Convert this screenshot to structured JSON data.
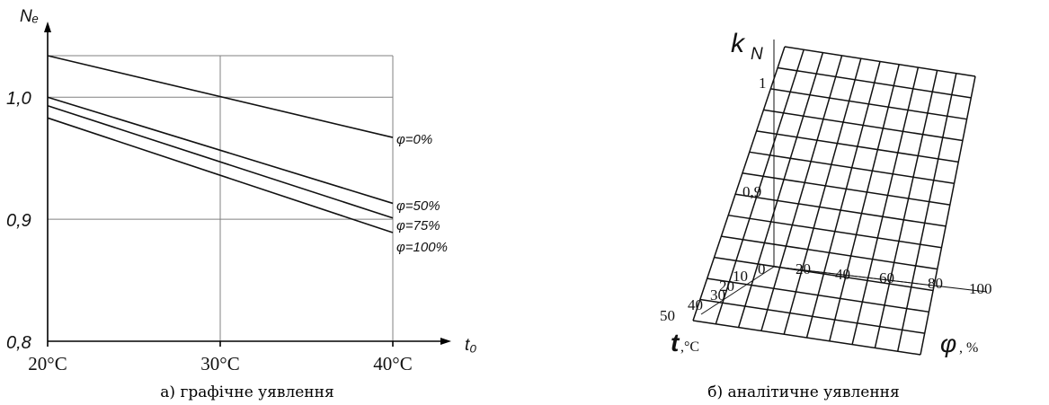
{
  "chart_data": [
    {
      "type": "line",
      "xlabel": "t₀",
      "ylabel": "Nₑ",
      "x": [
        20,
        40
      ],
      "x_tick_labels": [
        "20°C",
        "30°C",
        "40°C"
      ],
      "x_ticks": [
        20,
        30,
        40
      ],
      "y_tick_labels": [
        "0,8",
        "0,9",
        "1,0"
      ],
      "y_ticks": [
        0.8,
        0.9,
        1.0
      ],
      "xlim": [
        20,
        40
      ],
      "ylim": [
        0.8,
        1.034
      ],
      "grid": true,
      "series": [
        {
          "name": "φ=0%",
          "values": [
            1.034,
            0.967
          ]
        },
        {
          "name": "φ=50%",
          "values": [
            1.0,
            0.913
          ]
        },
        {
          "name": "φ=75%",
          "values": [
            0.993,
            0.901
          ]
        },
        {
          "name": "φ=100%",
          "values": [
            0.983,
            0.889
          ]
        }
      ],
      "caption": "а) графічне уявлення"
    },
    {
      "type": "surface",
      "zlabel": "k",
      "zlabel_sub": "N",
      "xlabel": "φ",
      "xlabel_unit": ", %",
      "ylabel": "t",
      "ylabel_unit": ",°C",
      "z_tick_labels": [
        "1",
        "0,9"
      ],
      "phi_tick_labels": [
        "0",
        "20",
        "40",
        "60",
        "80",
        "100"
      ],
      "t_tick_labels": [
        "0",
        "10",
        "20",
        "30",
        "40",
        "50"
      ],
      "mesh_columns": 10,
      "mesh_rows": 13,
      "caption": "б) аналітичне уявлення"
    }
  ]
}
